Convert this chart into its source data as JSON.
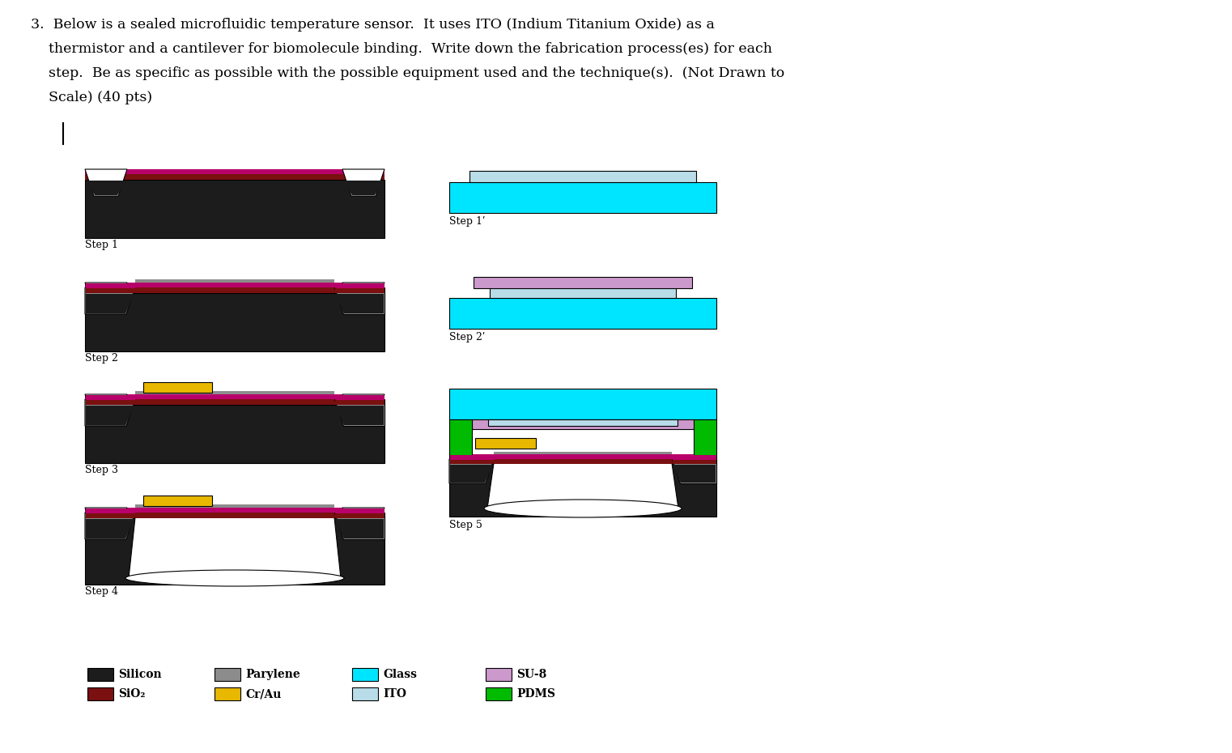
{
  "colors": {
    "silicon": "#1c1c1c",
    "sio2": "#7a1010",
    "parylene": "#8c8c8c",
    "crau": "#e8b800",
    "glass": "#00e5ff",
    "ito": "#b8dde8",
    "su8": "#cc99cc",
    "pdms": "#00bb00",
    "white": "#ffffff",
    "magenta": "#b8006a",
    "outline": "#000000",
    "bg": "#ffffff"
  },
  "title_lines": [
    "3.  Below is a sealed microfluidic temperature sensor.  It uses ITO (Indium Titanium Oxide) as a",
    "    thermistor and a cantilever for biomolecule binding.  Write down the fabrication process(es) for each",
    "    step.  Be as specific as possible with the possible equipment used and the technique(s).  (Not Drawn to",
    "    Scale) (40 pts)"
  ]
}
